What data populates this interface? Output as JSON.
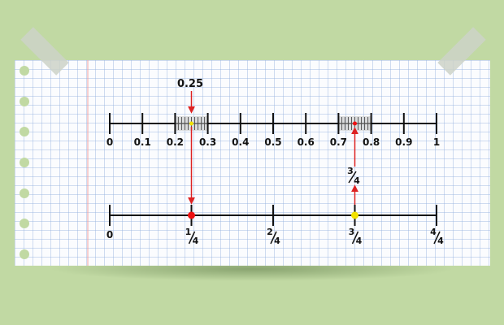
{
  "decimal_line": {
    "ticks": [
      "0",
      "0.1",
      "0.2",
      "0.3",
      "0.4",
      "0.5",
      "0.6",
      "0.7",
      "0.8",
      "0.9",
      "1"
    ],
    "callout": "0.25",
    "marked_values": [
      0.25,
      0.75
    ]
  },
  "fraction_line": {
    "ticks": [
      {
        "value": 0,
        "num": "0",
        "den": ""
      },
      {
        "value": 0.25,
        "num": "1",
        "den": "4"
      },
      {
        "value": 0.5,
        "num": "2",
        "den": "4"
      },
      {
        "value": 0.75,
        "num": "3",
        "den": "4"
      },
      {
        "value": 1,
        "num": "4",
        "den": "4"
      }
    ],
    "callout_num": "3",
    "callout_den": "4",
    "points": [
      {
        "value": 0.25,
        "color": "#ee1111"
      },
      {
        "value": 0.75,
        "color": "#f2e200"
      }
    ]
  },
  "colors": {
    "arrow": "#dd2222",
    "line": "#111111",
    "paper_margin": "#f0a0a0",
    "hole": "#c1d9a3"
  }
}
